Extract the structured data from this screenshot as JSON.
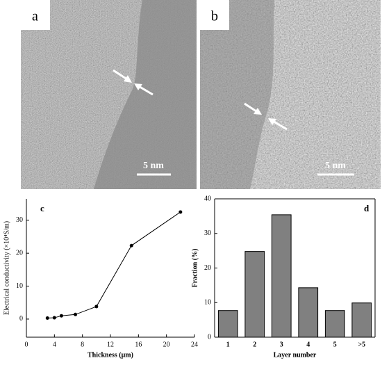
{
  "images": [
    {
      "label": "a",
      "scale_bar": "5 nm"
    },
    {
      "label": "b",
      "scale_bar": "5 nm"
    }
  ],
  "chart_data": [
    {
      "type": "line",
      "label": "c",
      "x_label": "Thickness (μm)",
      "y_label": "Electrical conductivity (×10⁴S/m)",
      "x": [
        3,
        4,
        5,
        7,
        10,
        15,
        22
      ],
      "values": [
        0.3,
        0.4,
        1.0,
        1.4,
        3.8,
        22.3,
        32.5
      ],
      "color": "#000000",
      "xlim": [
        0,
        24
      ],
      "xticks": [
        0,
        4,
        8,
        12,
        16,
        20,
        24
      ],
      "ylim": [
        -5.5,
        36.5
      ],
      "yticks": [
        0,
        10,
        20,
        30
      ],
      "frame": "axes"
    },
    {
      "type": "bar",
      "label": "d",
      "x_label": "Layer number",
      "y_label": "Fraction (%)",
      "categories": [
        "1",
        "2",
        "3",
        "4",
        "5",
        ">5"
      ],
      "values": [
        7.7,
        24.8,
        35.4,
        14.3,
        7.7,
        9.9
      ],
      "color": "#808080",
      "ylim": [
        0,
        40
      ],
      "yticks": [
        0,
        10,
        20,
        30,
        40
      ],
      "frame": "box"
    }
  ]
}
